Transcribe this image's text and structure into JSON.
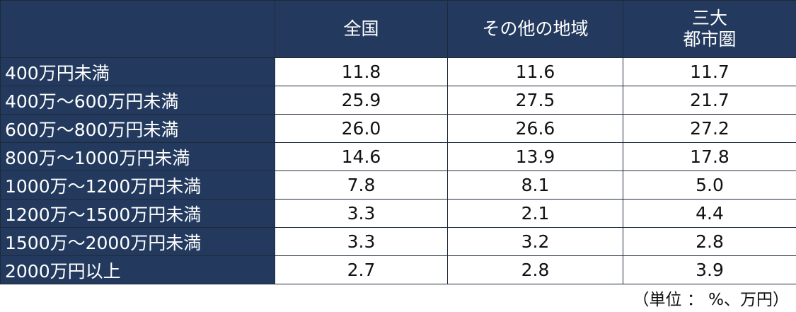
{
  "table": {
    "columns": [
      "全国",
      "その他の地域",
      "三大\n都市圏"
    ],
    "rows": [
      [
        "400万円未満",
        "11.8",
        "11.6",
        "11.7"
      ],
      [
        "400万～600万円未満",
        "25.9",
        "27.5",
        "21.7"
      ],
      [
        "600万～800万円未満",
        "26.0",
        "26.6",
        "27.2"
      ],
      [
        "800万～1000万円未満",
        "14.6",
        "13.9",
        "17.8"
      ],
      [
        "1000万～1200万円未満",
        "7.8",
        "8.1",
        "5.0"
      ],
      [
        "1200万～1500万円未満",
        "3.3",
        "2.1",
        "4.4"
      ],
      [
        "1500万～2000万円未満",
        "3.3",
        "3.2",
        "2.8"
      ],
      [
        "2000万円以上",
        "2.7",
        "2.8",
        "3.9"
      ]
    ]
  },
  "note": "（単位 ： %、万円）"
}
